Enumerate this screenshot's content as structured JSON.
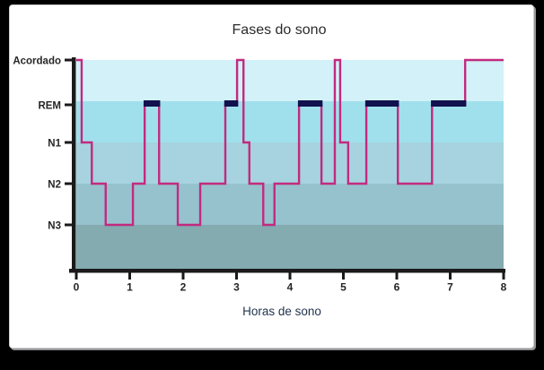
{
  "chart_data": {
    "type": "line",
    "chart_kind": "hypnogram-step",
    "title": "Fases do sono",
    "xlabel": "Horas de sono",
    "xlim": [
      0,
      8
    ],
    "x_ticks": [
      "0",
      "1",
      "2",
      "3",
      "4",
      "5",
      "6",
      "7",
      "8"
    ],
    "y_categories_top_to_bottom": [
      "Acordado",
      "REM",
      "N1",
      "N2",
      "N3"
    ],
    "grid": false,
    "legend": "none",
    "rem_segments_highlighted": true,
    "segments": [
      {
        "stage": "Acordado",
        "start": 0.0,
        "end": 0.1
      },
      {
        "stage": "N1",
        "start": 0.1,
        "end": 0.29
      },
      {
        "stage": "N2",
        "start": 0.29,
        "end": 0.55
      },
      {
        "stage": "N3",
        "start": 0.55,
        "end": 1.06
      },
      {
        "stage": "N2",
        "start": 1.06,
        "end": 1.28
      },
      {
        "stage": "REM",
        "start": 1.28,
        "end": 1.55
      },
      {
        "stage": "N2",
        "start": 1.55,
        "end": 1.9
      },
      {
        "stage": "N3",
        "start": 1.9,
        "end": 2.32
      },
      {
        "stage": "N2",
        "start": 2.32,
        "end": 2.79
      },
      {
        "stage": "REM",
        "start": 2.79,
        "end": 3.01
      },
      {
        "stage": "Acordado",
        "start": 3.01,
        "end": 3.13
      },
      {
        "stage": "N1",
        "start": 3.13,
        "end": 3.24
      },
      {
        "stage": "N2",
        "start": 3.24,
        "end": 3.5
      },
      {
        "stage": "N3",
        "start": 3.5,
        "end": 3.71
      },
      {
        "stage": "N2",
        "start": 3.71,
        "end": 4.17
      },
      {
        "stage": "REM",
        "start": 4.17,
        "end": 4.59
      },
      {
        "stage": "N2",
        "start": 4.59,
        "end": 4.84
      },
      {
        "stage": "Acordado",
        "start": 4.84,
        "end": 4.94
      },
      {
        "stage": "N1",
        "start": 4.94,
        "end": 5.09
      },
      {
        "stage": "N2",
        "start": 5.09,
        "end": 5.43
      },
      {
        "stage": "REM",
        "start": 5.43,
        "end": 6.02
      },
      {
        "stage": "N2",
        "start": 6.02,
        "end": 6.66
      },
      {
        "stage": "REM",
        "start": 6.66,
        "end": 7.28
      },
      {
        "stage": "Acordado",
        "start": 7.28,
        "end": 8.0
      }
    ],
    "colors": {
      "line": "#c22a7f",
      "rem_highlight": "#11114e",
      "bands_top_to_bottom": [
        "#d3f1f8",
        "#a0e0ec",
        "#a6d3df",
        "#96c2cd",
        "#83abb0"
      ],
      "axis": "#1a1a1a",
      "tick_text": "#262626",
      "title_text": "#2b2b2b",
      "xlabel_text": "#22354f",
      "card_background": "#ffffff",
      "page_background": "#000000"
    }
  }
}
